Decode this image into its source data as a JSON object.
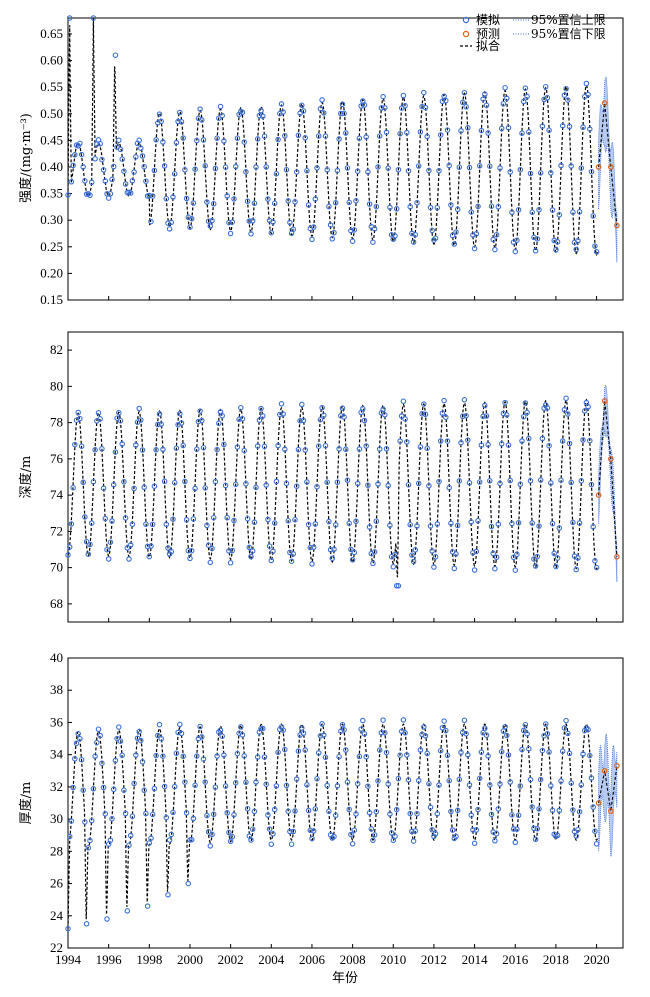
{
  "chart_data": [
    {
      "type": "scatter",
      "ylabel": "强度/(mg·m⁻³)",
      "ylim": [
        0.15,
        0.68
      ],
      "yticks": [
        "0.15",
        "0.20",
        "0.25",
        "0.30",
        "0.35",
        "0.40",
        "0.45",
        "0.50",
        "0.55",
        "0.60",
        "0.65"
      ],
      "yticks_values": [
        0.15,
        0.2,
        0.25,
        0.3,
        0.35,
        0.4,
        0.45,
        0.5,
        0.55,
        0.6,
        0.65
      ],
      "xlim": [
        1994,
        2021.3
      ],
      "legend": {
        "position": "top-right",
        "entries": [
          {
            "label": "模拟",
            "marker": "blue-circle"
          },
          {
            "label": "预测",
            "marker": "orange-circle"
          },
          {
            "label": "拟合",
            "marker": "black-dash"
          },
          {
            "label": "95%置信上限",
            "marker": "blue-dotted"
          },
          {
            "label": "95%置信下限",
            "marker": "blue-dotted"
          }
        ]
      },
      "series_model": {
        "base": 0.395,
        "amp": 0.095,
        "amp_growth": 0.0025,
        "early_amp": 0.05,
        "early_years": 4,
        "spikes": [
          [
            1994.08,
            0.68
          ],
          [
            1995.25,
            0.68
          ],
          [
            1996.3,
            0.61
          ]
        ]
      },
      "forecast": {
        "x": [
          2020.1,
          2020.4,
          2020.7,
          2021.0
        ],
        "y": [
          0.4,
          0.52,
          0.4,
          0.29
        ],
        "band": 0.08
      },
      "colors": {
        "sim": "#3a6fd8",
        "pred": "#e06020",
        "fit": "#000000",
        "band": "#7b9ee8"
      }
    },
    {
      "type": "scatter",
      "ylabel": "深度/m",
      "ylim": [
        67,
        83
      ],
      "yticks": [
        "68",
        "70",
        "72",
        "74",
        "76",
        "78",
        "80",
        "82"
      ],
      "yticks_values": [
        68,
        70,
        72,
        74,
        76,
        78,
        80,
        82
      ],
      "xlim": [
        1994,
        2021.3
      ],
      "series_model": {
        "base": 74.6,
        "amp": 3.9,
        "amp_growth": 0.03,
        "early_amp": 3.3,
        "early_years": 0,
        "spikes": [
          [
            2010.2,
            69.0
          ]
        ]
      },
      "forecast": {
        "x": [
          2020.1,
          2020.4,
          2020.7,
          2021.0
        ],
        "y": [
          74.0,
          79.2,
          76.0,
          70.6
        ],
        "band": 1.6
      },
      "colors": {
        "sim": "#3a6fd8",
        "pred": "#e06020",
        "fit": "#000000",
        "band": "#7b9ee8"
      }
    },
    {
      "type": "scatter",
      "ylabel": "厚度/m",
      "xlabel": "年份",
      "ylim": [
        22,
        40
      ],
      "yticks": [
        "22",
        "24",
        "26",
        "28",
        "30",
        "32",
        "34",
        "36",
        "38",
        "40"
      ],
      "yticks_values": [
        22,
        24,
        26,
        28,
        30,
        32,
        34,
        36,
        38,
        40
      ],
      "xlim": [
        1994,
        2021.3
      ],
      "xticks": [
        "1994",
        "1996",
        "1998",
        "2000",
        "2002",
        "2004",
        "2006",
        "2008",
        "2010",
        "2012",
        "2014",
        "2016",
        "2018",
        "2020"
      ],
      "xticks_values": [
        1994,
        1996,
        1998,
        2000,
        2002,
        2004,
        2006,
        2008,
        2010,
        2012,
        2014,
        2016,
        2018,
        2020
      ],
      "series_model": {
        "base": 31.8,
        "amp": 3.6,
        "amp_growth": 0.0,
        "early_amp": 0,
        "early_years": 0,
        "spikes": [
          [
            1994.0,
            23.2
          ],
          [
            1994.9,
            23.5
          ],
          [
            1995.9,
            23.8
          ],
          [
            1996.9,
            24.3
          ],
          [
            1997.9,
            24.6
          ],
          [
            1998.9,
            25.3
          ],
          [
            1999.9,
            26.0
          ]
        ]
      },
      "forecast": {
        "x": [
          2020.1,
          2020.4,
          2020.7,
          2021.0
        ],
        "y": [
          31.0,
          33.0,
          30.5,
          33.3
        ],
        "band": 3.0
      },
      "colors": {
        "sim": "#3a6fd8",
        "pred": "#e06020",
        "fit": "#000000",
        "band": "#7b9ee8"
      }
    }
  ]
}
